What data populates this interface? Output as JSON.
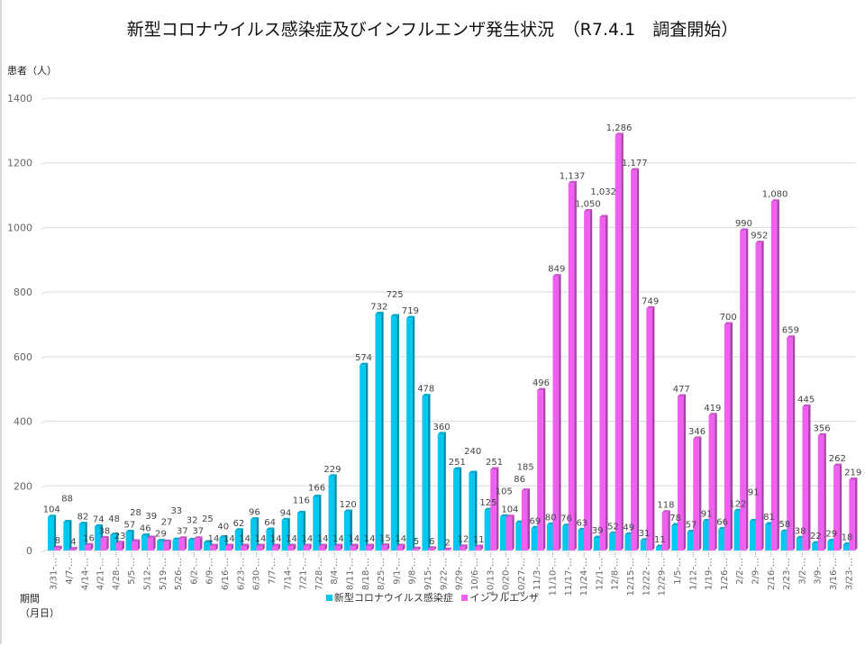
{
  "chart_data": {
    "type": "bar",
    "title": "新型コロナウイルス感染症及びインフルエンザ発生状況　（R7.4.1　調査開始）",
    "ylabel": "患者（人）",
    "xlabel_line1": "期間",
    "xlabel_line2": "（月日）",
    "ylim": [
      0,
      1400
    ],
    "yticks": [
      0,
      200,
      400,
      600,
      800,
      1000,
      1200,
      1400
    ],
    "grid": true,
    "legend_position": "bottom",
    "categories": [
      "3/31-…",
      "4/7-…",
      "4/14-…",
      "4/21-…",
      "4/28-…",
      "5/5-…",
      "5/12-…",
      "5/19-…",
      "5/26-…",
      "6/2-…",
      "6/9-…",
      "6/16-…",
      "6/23-…",
      "6/30-…",
      "7/7-…",
      "7/14-…",
      "7/21-…",
      "7/28-…",
      "8/4-…",
      "8/11-…",
      "8/18-…",
      "8/25-…",
      "9/1-…",
      "9/8-…",
      "9/15-…",
      "9/22-…",
      "9/29-…",
      "10/6-…",
      "10/13-…",
      "10/20-…",
      "10/27-…",
      "11/3-…",
      "11/10-…",
      "11/17-…",
      "11/24-…",
      "12/1-…",
      "12/8-…",
      "12/15-…",
      "12/22-…",
      "12/29-…",
      "1/5-…",
      "1/12-…",
      "1/19-…",
      "1/26-…",
      "2/2-…",
      "2/9-…",
      "2/16-…",
      "2/23-…",
      "3/2-…",
      "3/9-…",
      "3/16-…",
      "3/23-…"
    ],
    "series": [
      {
        "name": "新型コロナウイルス感染症",
        "color": "#00c8f0",
        "values": [
          104,
          88,
          82,
          74,
          48,
          57,
          46,
          29,
          33,
          32,
          25,
          40,
          62,
          96,
          64,
          94,
          116,
          166,
          229,
          120,
          574,
          732,
          725,
          719,
          478,
          360,
          251,
          240,
          125,
          105,
          86,
          69,
          80,
          76,
          63,
          39,
          52,
          49,
          31,
          11,
          78,
          57,
          91,
          66,
          122,
          91,
          81,
          58,
          38,
          22,
          29,
          18
        ]
      },
      {
        "name": "インフルエンザ",
        "color": "#f060f0",
        "values": [
          8,
          4,
          16,
          38,
          23,
          28,
          39,
          27,
          37,
          37,
          14,
          14,
          14,
          14,
          14,
          14,
          14,
          14,
          14,
          14,
          14,
          15,
          14,
          5,
          6,
          2,
          12,
          11,
          251,
          104,
          185,
          496,
          849,
          1137,
          1050,
          1032,
          1286,
          1177,
          749,
          118,
          477,
          346,
          419,
          700,
          990,
          952,
          1080,
          659,
          445,
          356,
          262,
          219
        ]
      }
    ]
  }
}
